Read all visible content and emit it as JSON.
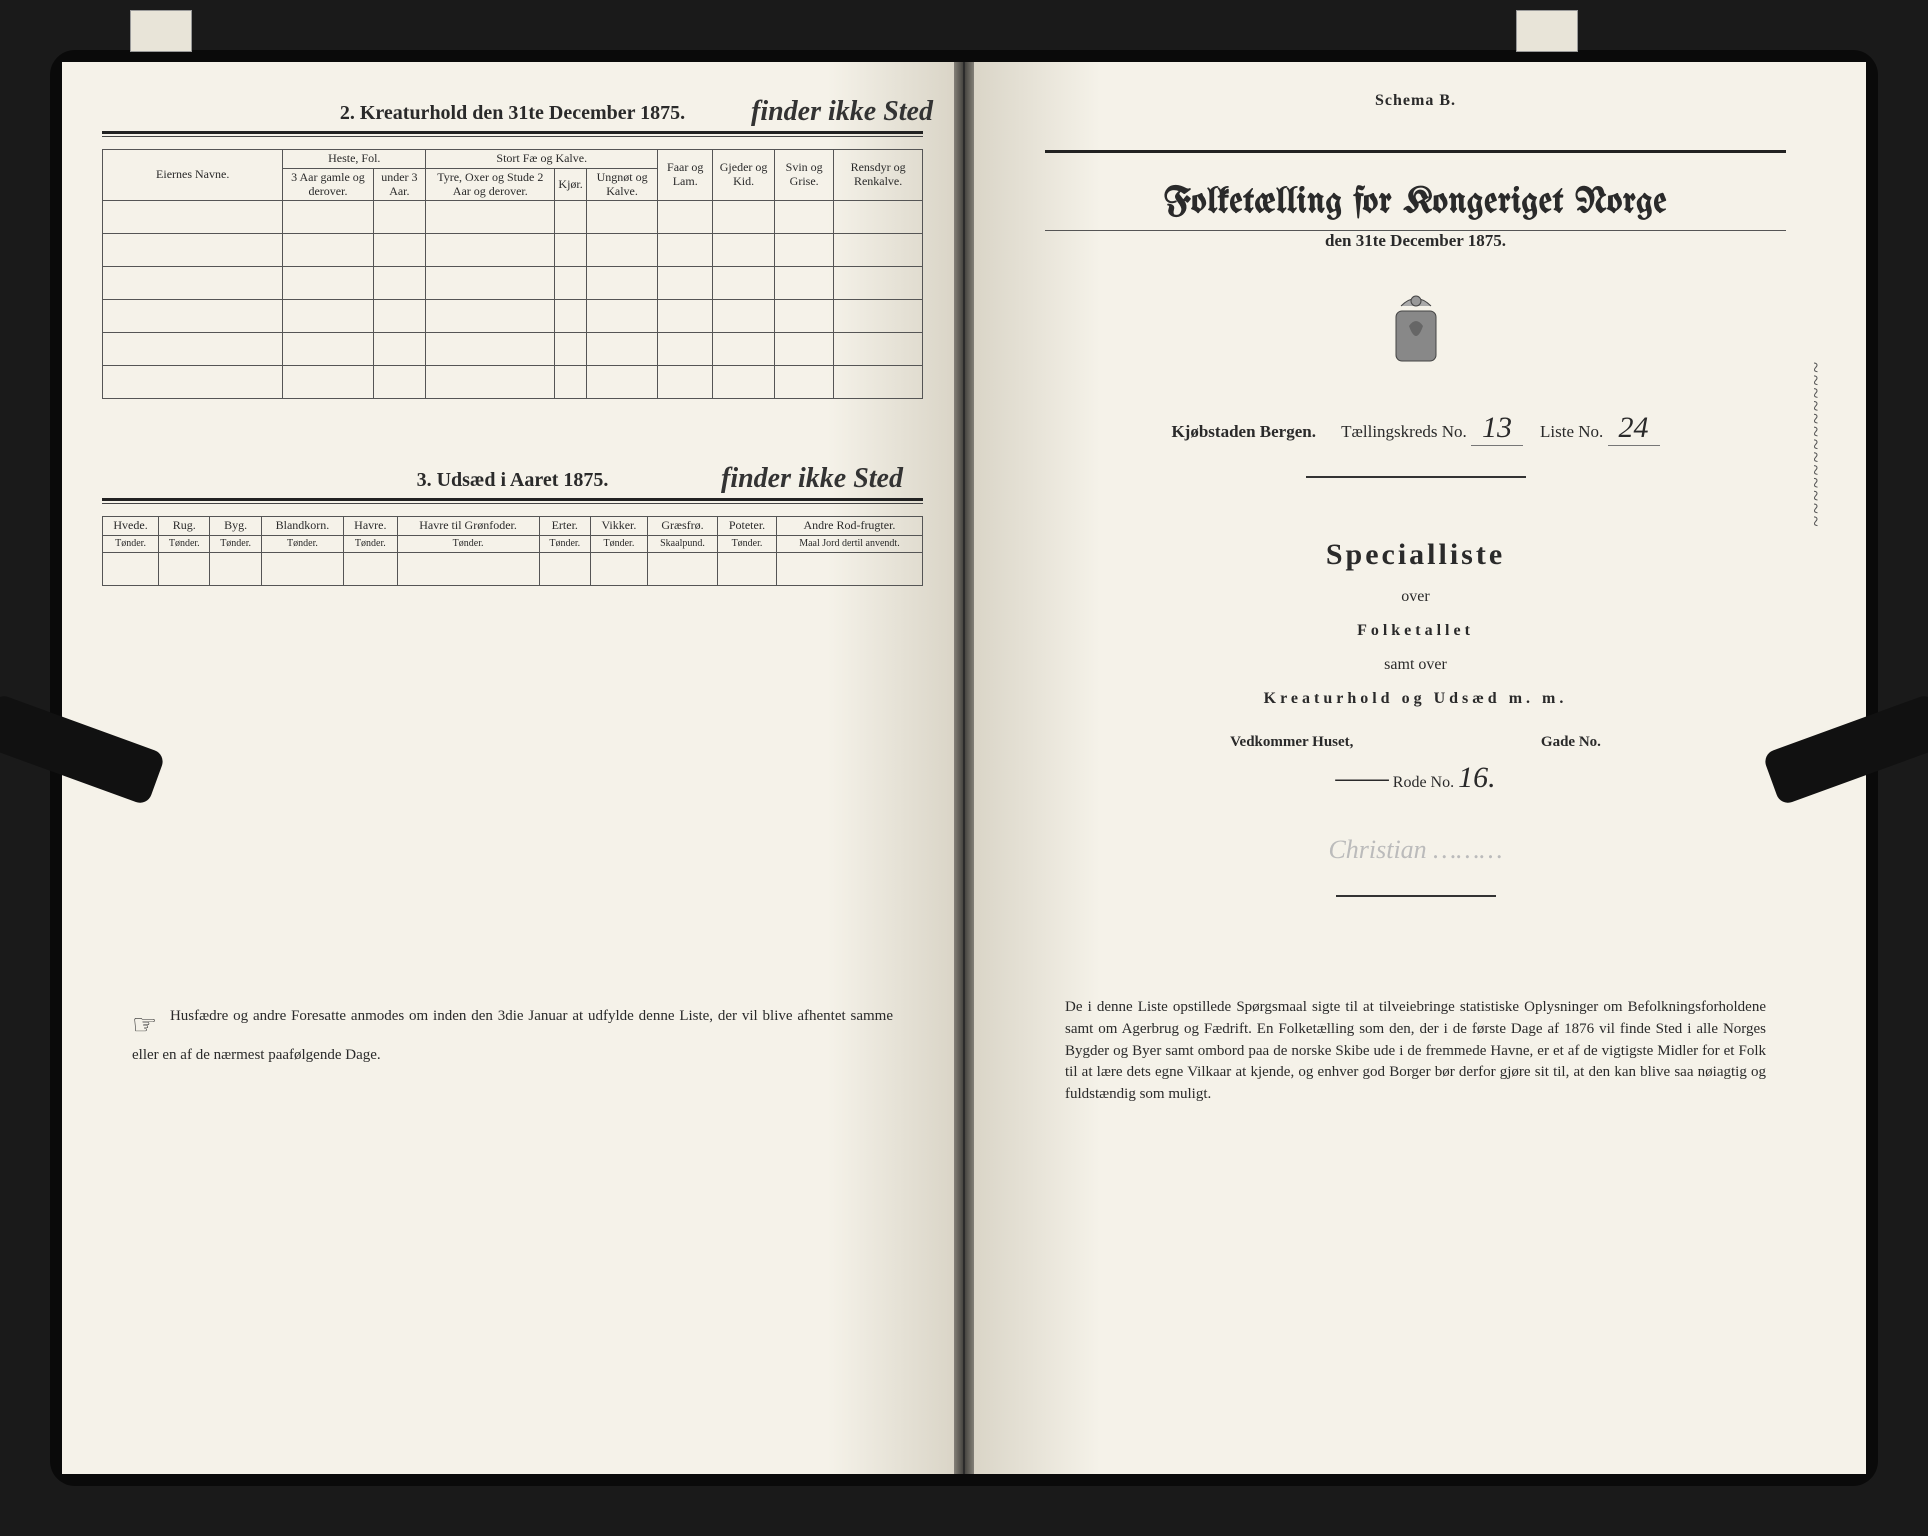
{
  "left_page": {
    "section2": {
      "title": "2.  Kreaturhold den 31te December 1875.",
      "handwritten": "finder ikke Sted",
      "col_owner": "Eiernes Navne.",
      "group_heste": "Heste, Fol.",
      "heste_sub1": "3 Aar gamle og derover.",
      "heste_sub2": "under 3 Aar.",
      "group_stort": "Stort Fæ og Kalve.",
      "stort_sub1": "Tyre, Oxer og Stude 2 Aar og derover.",
      "stort_sub2": "Kjør.",
      "stort_sub3": "Ungnøt og Kalve.",
      "col_faar": "Faar og Lam.",
      "col_gjeder": "Gjeder og Kid.",
      "col_svin": "Svin og Grise.",
      "col_ren": "Rensdyr og Renkalve."
    },
    "section3": {
      "title": "3.  Udsæd i Aaret 1875.",
      "handwritten": "finder ikke Sted",
      "cols": [
        {
          "h": "Hvede.",
          "s": "Tønder."
        },
        {
          "h": "Rug.",
          "s": "Tønder."
        },
        {
          "h": "Byg.",
          "s": "Tønder."
        },
        {
          "h": "Blandkorn.",
          "s": "Tønder."
        },
        {
          "h": "Havre.",
          "s": "Tønder."
        },
        {
          "h": "Havre til Grønfoder.",
          "s": "Tønder."
        },
        {
          "h": "Erter.",
          "s": "Tønder."
        },
        {
          "h": "Vikker.",
          "s": "Tønder."
        },
        {
          "h": "Græsfrø.",
          "s": "Skaalpund."
        },
        {
          "h": "Poteter.",
          "s": "Tønder."
        },
        {
          "h": "Andre Rod-frugter.",
          "s": "Maal Jord dertil anvendt."
        }
      ]
    },
    "footnote": "Husfædre og andre Foresatte anmodes om inden den 3die Januar at udfylde denne Liste, der vil blive afhentet samme eller en af de nærmest paafølgende Dage."
  },
  "right_page": {
    "schema": "Schema B.",
    "main_title": "Folketælling for Kongeriget Norge",
    "sub_date": "den 31te December 1875.",
    "city_label": "Kjøbstaden Bergen.",
    "kreds_label": "Tællingskreds No.",
    "kreds_value": "13",
    "liste_label": "Liste No.",
    "liste_value": "24",
    "special": "Specialliste",
    "over": "over",
    "folketallet": "Folketallet",
    "samt": "samt over",
    "kreatur": "Kreaturhold og Udsæd m. m.",
    "vedkommer": "Vedkommer Huset,",
    "gade": "Gade No.",
    "rode_label": "Rode No.",
    "rode_value": "16.",
    "paragraph": "De i denne Liste opstillede Spørgsmaal sigte til at tilveiebringe statistiske Oplysninger om Befolkningsforholdene samt om Agerbrug og Fædrift.  En Folketælling som den, der i de første Dage af 1876 vil finde Sted i alle Norges Bygder og Byer samt ombord paa de norske Skibe ude i de fremmede Havne, er et af de vigtigste Midler for et Folk til at lære dets egne Vilkaar at kjende, og enhver god Borger bør derfor gjøre sit til, at den kan blive saa nøiagtig og fuldstændig som muligt."
  },
  "colors": {
    "paper": "#f5f2e9",
    "ink": "#2a2a2a",
    "frame": "#0a0a0a"
  }
}
